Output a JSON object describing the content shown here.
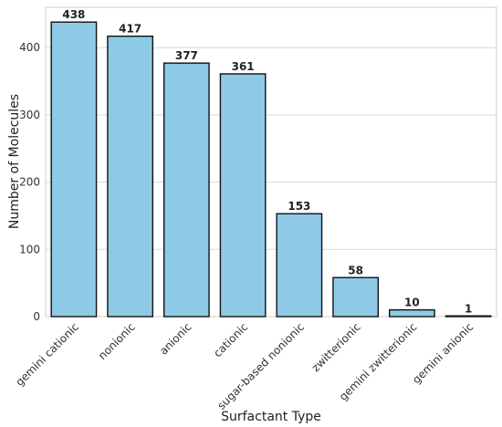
{
  "chart_data": {
    "type": "bar",
    "title": "",
    "xlabel": "Surfactant Type",
    "ylabel": "Number of Molecules",
    "categories": [
      "gemini cationic",
      "nonionic",
      "anionic",
      "cationic",
      "sugar-based nonionic",
      "zwitterionic",
      "gemini zwitterionic",
      "gemini anionic"
    ],
    "values": [
      438,
      417,
      377,
      361,
      153,
      58,
      10,
      1
    ],
    "data_labels": [
      "438",
      "417",
      "377",
      "361",
      "153",
      "58",
      "10",
      "1"
    ],
    "ylim": [
      0,
      460
    ],
    "yticks": [
      0,
      100,
      200,
      300,
      400
    ],
    "ytick_labels": [
      "0",
      "100",
      "200",
      "300",
      "400"
    ],
    "grid": "horizontal",
    "bar_color": "#8ecae6",
    "bar_edge_color": "#111111"
  }
}
